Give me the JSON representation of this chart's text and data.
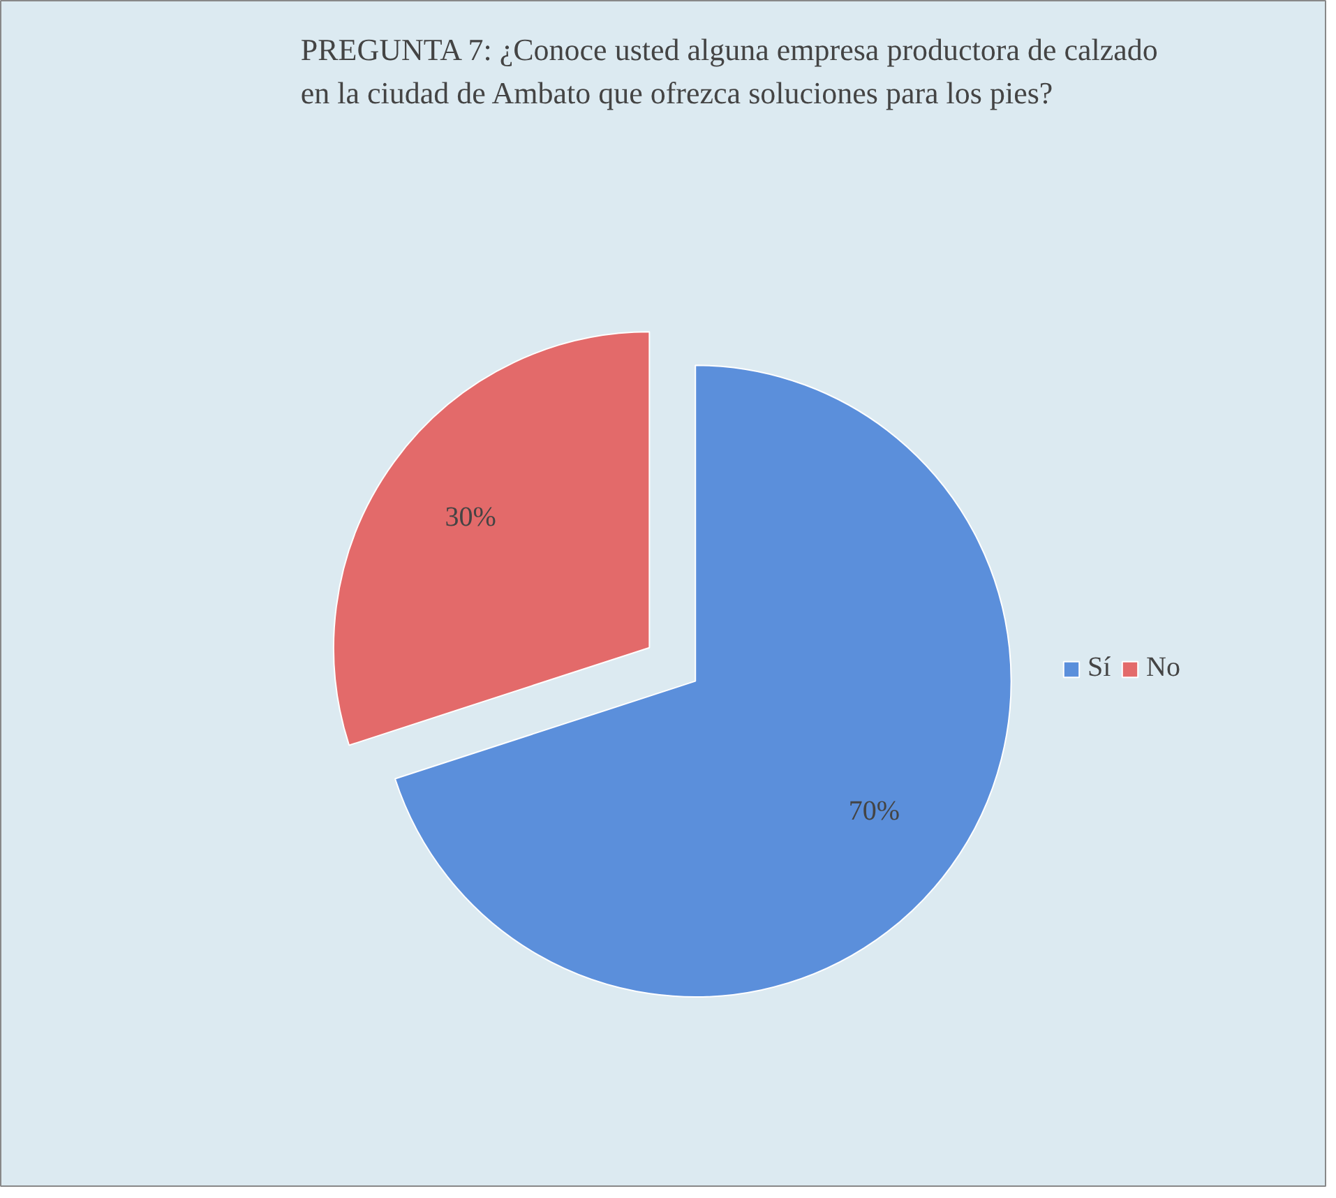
{
  "chart_data": {
    "type": "pie",
    "title": "PREGUNTA 7: ¿Conoce usted alguna empresa productora de calzado en la ciudad de Ambato que ofrezca soluciones para los pies?",
    "categories": [
      "Sí",
      "No"
    ],
    "values": [
      70,
      30
    ],
    "colors": [
      "#5b8fdb",
      "#e36a6a"
    ],
    "value_labels": [
      "70%",
      "30%"
    ],
    "legend": "right"
  }
}
